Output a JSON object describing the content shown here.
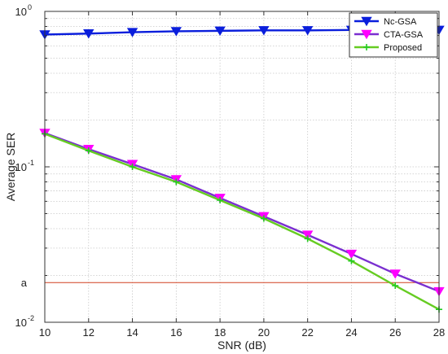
{
  "chart_data": {
    "type": "line",
    "xlabel": "SNR (dB)",
    "ylabel": "Average SER",
    "y_scale": "log",
    "xlim": [
      10,
      28
    ],
    "ylim": [
      0.01,
      1
    ],
    "grid": true,
    "legend_position": "top-right",
    "x_ticks": [
      10,
      12,
      14,
      16,
      18,
      20,
      22,
      24,
      26,
      28
    ],
    "x_tick_labels": [
      "10",
      "12",
      "14",
      "16",
      "18",
      "20",
      "22",
      "24",
      "26",
      "28"
    ],
    "y_ticks": [
      {
        "value": 1,
        "base": "10",
        "exp": "0"
      },
      {
        "value": 0.1,
        "base": "10",
        "exp": "-1"
      },
      {
        "value": 0.01,
        "base": "10",
        "exp": "-2"
      }
    ],
    "x": [
      10,
      12,
      14,
      16,
      18,
      20,
      22,
      24,
      26,
      28
    ],
    "series": [
      {
        "name": "Nc-GSA",
        "color": "#0a1edc",
        "marker": "triangle-down",
        "values": [
          0.71,
          0.72,
          0.735,
          0.745,
          0.75,
          0.755,
          0.755,
          0.76,
          0.76,
          0.76
        ]
      },
      {
        "name": "CTA-GSA",
        "color": "#ff00ff",
        "line_color": "#7a2fd0",
        "marker": "triangle-down",
        "values": [
          0.165,
          0.13,
          0.104,
          0.083,
          0.063,
          0.048,
          0.0365,
          0.0275,
          0.0205,
          0.0158
        ]
      },
      {
        "name": "Proposed",
        "color": "#22cc22",
        "line_color": "#66cc22",
        "marker": "plus",
        "values": [
          0.163,
          0.127,
          0.1,
          0.08,
          0.061,
          0.0465,
          0.0345,
          0.0248,
          0.0172,
          0.0121
        ]
      }
    ],
    "annotations": [
      {
        "text": "a",
        "y": 0.018,
        "line_color": "#d04020"
      }
    ]
  }
}
